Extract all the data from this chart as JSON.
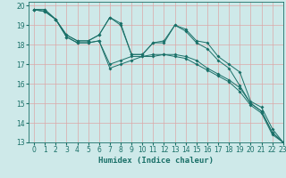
{
  "xlabel": "Humidex (Indice chaleur)",
  "xlim": [
    -0.5,
    23
  ],
  "ylim": [
    13,
    20.2
  ],
  "bg_color": "#cee9e9",
  "grid_color": "#dba8a8",
  "line_color": "#1a7068",
  "series": [
    [
      19.8,
      19.8,
      19.3,
      18.5,
      18.2,
      18.2,
      18.5,
      19.4,
      19.1,
      17.5,
      17.5,
      18.1,
      18.2,
      19.0,
      18.8,
      18.2,
      18.1,
      17.4,
      17.0,
      16.6,
      15.1,
      14.8,
      13.7,
      13.0
    ],
    [
      19.8,
      19.8,
      19.3,
      18.5,
      18.2,
      18.2,
      18.5,
      19.4,
      19.0,
      17.5,
      17.5,
      18.1,
      18.1,
      19.0,
      18.7,
      18.1,
      17.8,
      17.2,
      16.8,
      15.9,
      15.0,
      14.6,
      13.5,
      13.0
    ],
    [
      19.8,
      19.7,
      19.3,
      18.4,
      18.1,
      18.1,
      18.2,
      17.0,
      17.2,
      17.4,
      17.4,
      17.5,
      17.5,
      17.5,
      17.4,
      17.2,
      16.8,
      16.5,
      16.2,
      15.8,
      15.0,
      14.6,
      13.5,
      13.0
    ],
    [
      19.8,
      19.7,
      19.3,
      18.4,
      18.1,
      18.1,
      18.2,
      16.8,
      17.0,
      17.2,
      17.4,
      17.4,
      17.5,
      17.4,
      17.3,
      17.0,
      16.7,
      16.4,
      16.1,
      15.6,
      14.9,
      14.5,
      13.4,
      13.0
    ]
  ],
  "x_ticks": [
    0,
    1,
    2,
    3,
    4,
    5,
    6,
    7,
    8,
    9,
    10,
    11,
    12,
    13,
    14,
    15,
    16,
    17,
    18,
    19,
    20,
    21,
    22,
    23
  ],
  "y_ticks": [
    13,
    14,
    15,
    16,
    17,
    18,
    19,
    20
  ],
  "tick_fontsize": 5.5,
  "xlabel_fontsize": 6.5
}
